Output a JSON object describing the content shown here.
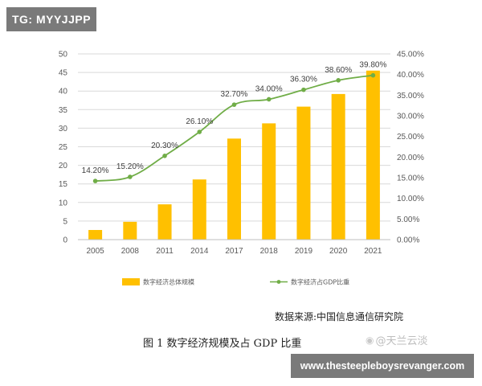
{
  "badge": {
    "text": "TG: MYYJJPP"
  },
  "chart_data": {
    "type": "bar",
    "categories": [
      "2005",
      "2008",
      "2011",
      "2014",
      "2017",
      "2018",
      "2019",
      "2020",
      "2021"
    ],
    "series": [
      {
        "name": "数字经济总体规模",
        "type": "bar",
        "axis": "left",
        "color": "#FFC000",
        "values": [
          2.6,
          4.8,
          9.5,
          16.2,
          27.2,
          31.3,
          35.8,
          39.2,
          45.5
        ]
      },
      {
        "name": "数字经济占GDP比重",
        "type": "line",
        "axis": "right",
        "color": "#70AD47",
        "values": [
          14.2,
          15.2,
          20.3,
          26.1,
          32.7,
          34.0,
          36.3,
          38.6,
          39.8
        ],
        "labels": [
          "14.20%",
          "15.20%",
          "20.30%",
          "26.10%",
          "32.70%",
          "34.00%",
          "36.30%",
          "38.60%",
          "39.80%"
        ]
      }
    ],
    "y_left": {
      "range": [
        0,
        50
      ],
      "ticks": [
        "0",
        "5",
        "10",
        "15",
        "20",
        "25",
        "30",
        "35",
        "40",
        "45",
        "50"
      ]
    },
    "y_right": {
      "range": [
        0,
        45
      ],
      "ticks": [
        "0.00%",
        "5.00%",
        "10.00%",
        "15.00%",
        "20.00%",
        "25.00%",
        "30.00%",
        "35.00%",
        "40.00%",
        "45.00%"
      ]
    },
    "grid": true,
    "legend_position": "bottom"
  },
  "source_text": "数据来源:中国信息通信研究院",
  "caption": "图 1  数字经济规模及占 GDP 比重",
  "watermark": {
    "text": "@天兰云淡",
    "icon": "weibo-icon"
  },
  "url_banner": "www.thesteepleboysrevanger.com"
}
